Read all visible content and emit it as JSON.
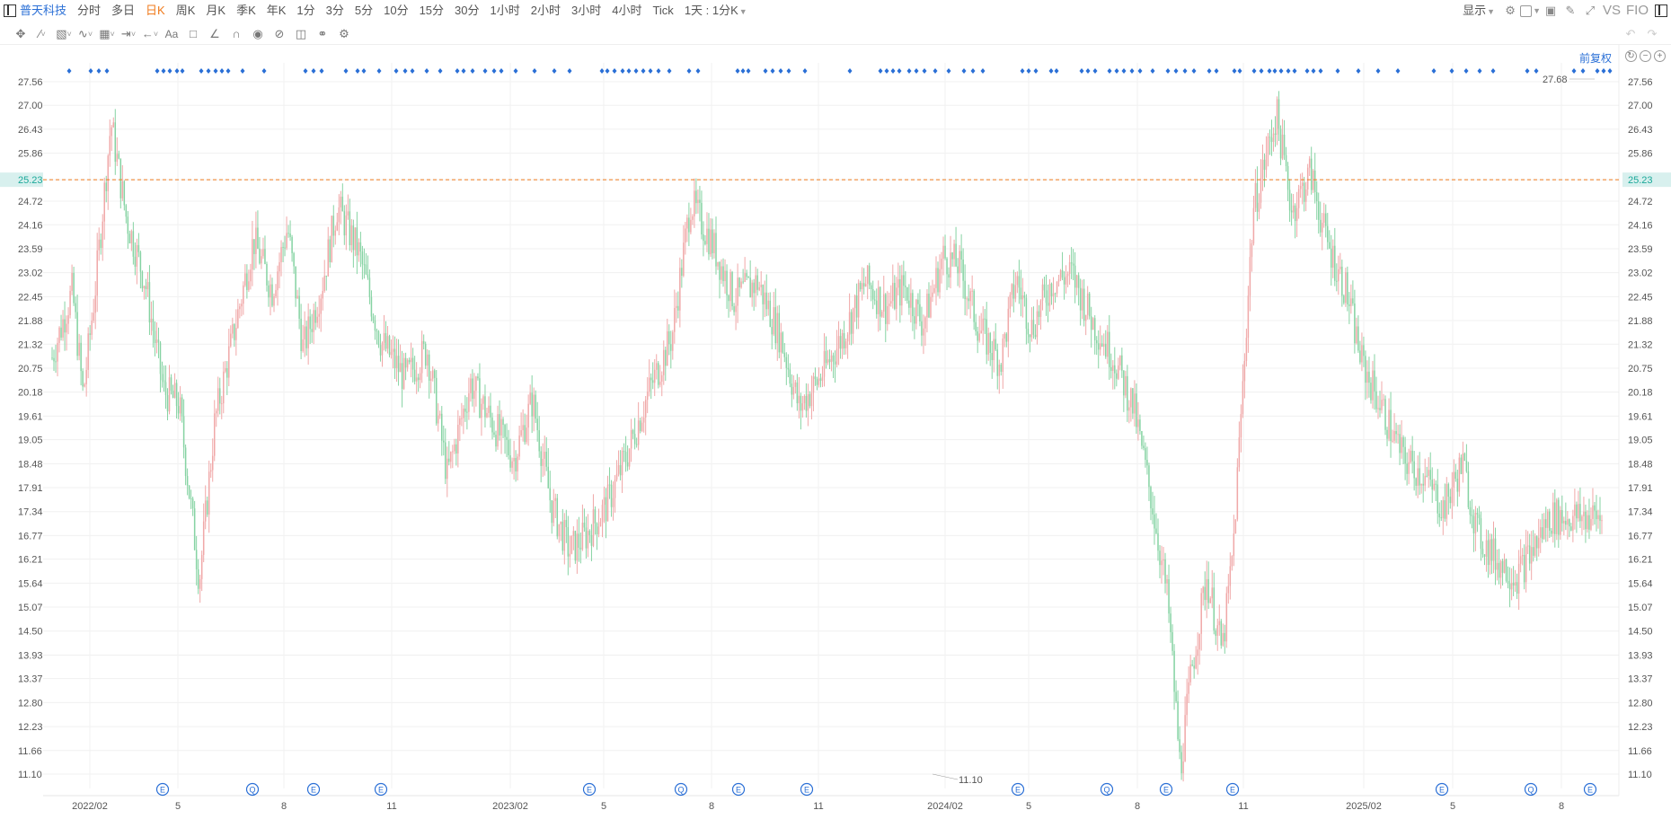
{
  "toolbar": {
    "stock_name": "普天科技",
    "periods": [
      "分时",
      "多日",
      "日K",
      "周K",
      "月K",
      "季K",
      "年K",
      "1分",
      "3分",
      "5分",
      "10分",
      "15分",
      "30分",
      "1小时",
      "2小时",
      "3小时",
      "4小时",
      "Tick"
    ],
    "active_period": "日K",
    "custom_period": "1天 : 1分K",
    "display_label": "显示",
    "vs_label": "VS",
    "f10_label": "FIO"
  },
  "chart": {
    "adjust_label": "前复权",
    "current_price": "25.23",
    "high_label": "27.68",
    "low_label": "11.10",
    "colors": {
      "up": "#f0a8a8",
      "down": "#86d3a3",
      "accent": "#2a6fd6",
      "current": "#f07b1d",
      "current_bg": "#d8f0ee",
      "current_text": "#1aa899"
    }
  },
  "chart_data": {
    "type": "candlestick",
    "y_ticks": [
      27.56,
      27.0,
      26.43,
      25.86,
      25.23,
      24.72,
      24.16,
      23.59,
      23.02,
      22.45,
      21.88,
      21.32,
      20.75,
      20.18,
      19.61,
      19.05,
      18.48,
      17.91,
      17.34,
      16.77,
      16.21,
      15.64,
      15.07,
      14.5,
      13.93,
      13.37,
      12.8,
      12.23,
      11.66,
      11.1
    ],
    "ylim": [
      11.1,
      27.56
    ],
    "x_labels": [
      "2022/02",
      "5",
      "8",
      "11",
      "2023/02",
      "5",
      "8",
      "11",
      "2024/02",
      "5",
      "8",
      "11",
      "2025/02",
      "5",
      "8"
    ],
    "price_path": [
      [
        0.0,
        21.0
      ],
      [
        0.013,
        22.6
      ],
      [
        0.02,
        20.1
      ],
      [
        0.028,
        22.7
      ],
      [
        0.038,
        26.6
      ],
      [
        0.048,
        24.3
      ],
      [
        0.06,
        22.8
      ],
      [
        0.072,
        20.2
      ],
      [
        0.082,
        19.9
      ],
      [
        0.095,
        15.7
      ],
      [
        0.105,
        19.5
      ],
      [
        0.115,
        21.2
      ],
      [
        0.13,
        23.8
      ],
      [
        0.142,
        22.6
      ],
      [
        0.152,
        24.1
      ],
      [
        0.162,
        21.2
      ],
      [
        0.174,
        22.7
      ],
      [
        0.184,
        24.6
      ],
      [
        0.198,
        23.5
      ],
      [
        0.212,
        21.4
      ],
      [
        0.228,
        20.5
      ],
      [
        0.242,
        21.2
      ],
      [
        0.255,
        18.2
      ],
      [
        0.27,
        20.4
      ],
      [
        0.285,
        19.4
      ],
      [
        0.298,
        18.6
      ],
      [
        0.31,
        20.0
      ],
      [
        0.322,
        17.5
      ],
      [
        0.334,
        16.4
      ],
      [
        0.345,
        16.8
      ],
      [
        0.358,
        17.5
      ],
      [
        0.372,
        18.8
      ],
      [
        0.385,
        20.2
      ],
      [
        0.4,
        21.5
      ],
      [
        0.412,
        24.7
      ],
      [
        0.425,
        23.8
      ],
      [
        0.44,
        22.4
      ],
      [
        0.455,
        22.8
      ],
      [
        0.47,
        21.5
      ],
      [
        0.482,
        19.8
      ],
      [
        0.495,
        20.5
      ],
      [
        0.51,
        21.5
      ],
      [
        0.525,
        22.8
      ],
      [
        0.538,
        22.2
      ],
      [
        0.55,
        22.7
      ],
      [
        0.562,
        21.8
      ],
      [
        0.575,
        23.4
      ],
      [
        0.585,
        23.2
      ],
      [
        0.598,
        21.7
      ],
      [
        0.612,
        20.9
      ],
      [
        0.622,
        22.9
      ],
      [
        0.632,
        21.7
      ],
      [
        0.645,
        22.8
      ],
      [
        0.658,
        23.0
      ],
      [
        0.672,
        21.8
      ],
      [
        0.685,
        21.0
      ],
      [
        0.698,
        19.8
      ],
      [
        0.71,
        17.5
      ],
      [
        0.72,
        15.2
      ],
      [
        0.728,
        11.2
      ],
      [
        0.735,
        13.5
      ],
      [
        0.745,
        15.8
      ],
      [
        0.755,
        14.0
      ],
      [
        0.762,
        16.4
      ],
      [
        0.775,
        24.5
      ],
      [
        0.79,
        26.8
      ],
      [
        0.8,
        24.5
      ],
      [
        0.812,
        25.4
      ],
      [
        0.822,
        23.8
      ],
      [
        0.835,
        22.6
      ],
      [
        0.845,
        20.9
      ],
      [
        0.858,
        19.8
      ],
      [
        0.872,
        18.6
      ],
      [
        0.885,
        18.2
      ],
      [
        0.898,
        17.4
      ],
      [
        0.91,
        18.5
      ],
      [
        0.92,
        16.8
      ],
      [
        0.932,
        16.2
      ],
      [
        0.945,
        15.8
      ],
      [
        0.958,
        16.6
      ],
      [
        0.966,
        17.2
      ]
    ]
  }
}
